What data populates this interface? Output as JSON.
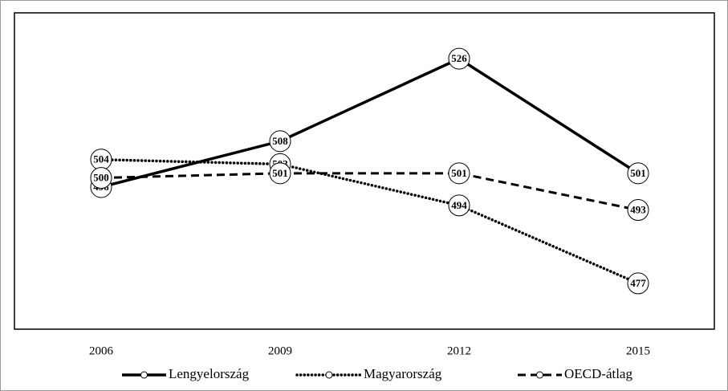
{
  "chart_data": {
    "type": "line",
    "categories": [
      "2006",
      "2009",
      "2012",
      "2015"
    ],
    "series": [
      {
        "name": "Lengyelország",
        "color": "#000000",
        "dash": "solid",
        "values": [
          498,
          508,
          526,
          501
        ]
      },
      {
        "name": "Magyarország",
        "color": "#000000",
        "dash": "dotted",
        "values": [
          504,
          503,
          494,
          477
        ]
      },
      {
        "name": "OECD-átlag",
        "color": "#000000",
        "dash": "dashed",
        "values": [
          500,
          501,
          501,
          493
        ]
      }
    ],
    "ylim": [
      467,
      536
    ],
    "grid": false,
    "legend": "bottom"
  }
}
